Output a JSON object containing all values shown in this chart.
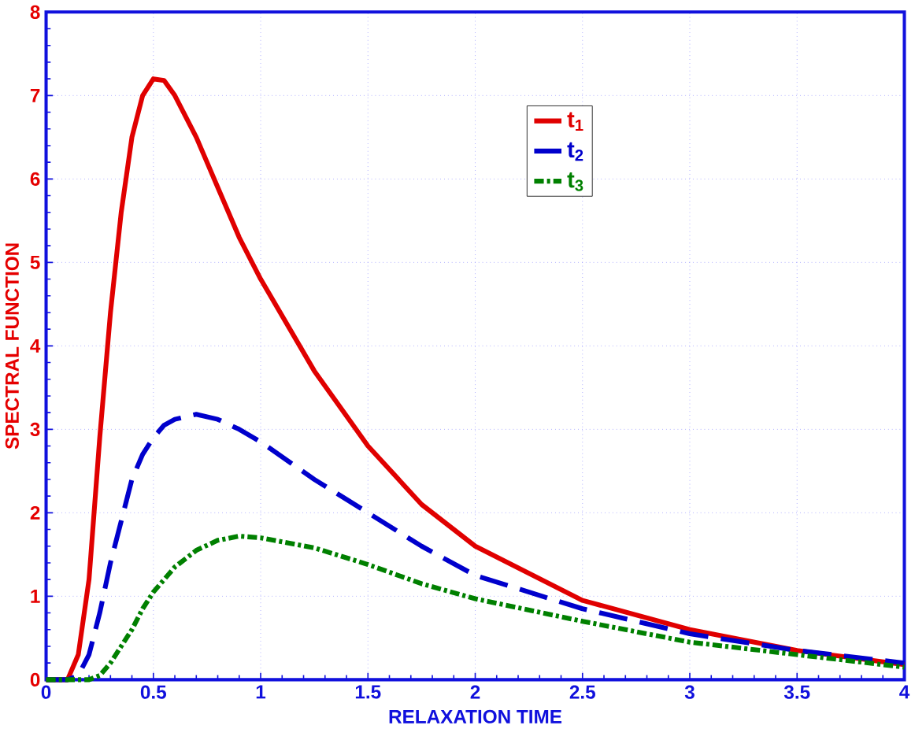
{
  "chart_data": {
    "type": "line",
    "xlabel": "RELAXATION  TIME",
    "ylabel": "SPECTRAL  FUNCTION",
    "xlim": [
      0,
      4
    ],
    "ylim": [
      0,
      8
    ],
    "xticks": [
      0,
      0.5,
      1,
      1.5,
      2,
      2.5,
      3,
      3.5,
      4
    ],
    "yticks": [
      0,
      1,
      2,
      3,
      4,
      5,
      6,
      7,
      8
    ],
    "grid": true,
    "legend": "top right",
    "marker": "none",
    "x": [
      0,
      0.1,
      0.15,
      0.2,
      0.25,
      0.3,
      0.35,
      0.4,
      0.45,
      0.5,
      0.55,
      0.6,
      0.7,
      0.8,
      0.9,
      1.0,
      1.25,
      1.5,
      1.75,
      2.0,
      2.5,
      3.0,
      3.5,
      4.0
    ],
    "series": [
      {
        "name": "t$_{1}$",
        "color": "#e00000",
        "line_style": "solid",
        "values": [
          0,
          0,
          0.3,
          1.2,
          2.9,
          4.4,
          5.6,
          6.5,
          7.0,
          7.2,
          7.18,
          7.0,
          6.5,
          5.9,
          5.3,
          4.8,
          3.7,
          2.8,
          2.1,
          1.6,
          0.95,
          0.6,
          0.35,
          0.18
        ]
      },
      {
        "name": "t$_{2}$",
        "color": "#0000cc",
        "line_style": "dashed",
        "values": [
          0,
          0,
          0.05,
          0.3,
          0.8,
          1.4,
          1.9,
          2.4,
          2.7,
          2.9,
          3.05,
          3.12,
          3.18,
          3.12,
          3.0,
          2.85,
          2.4,
          2.0,
          1.6,
          1.25,
          0.85,
          0.55,
          0.35,
          0.2
        ]
      },
      {
        "name": "t$_{3}$",
        "color": "#008000",
        "line_style": "dotted",
        "values": [
          0,
          0,
          0,
          0,
          0.05,
          0.2,
          0.4,
          0.6,
          0.85,
          1.05,
          1.2,
          1.35,
          1.55,
          1.67,
          1.72,
          1.7,
          1.58,
          1.38,
          1.15,
          0.97,
          0.7,
          0.45,
          0.3,
          0.15
        ]
      }
    ]
  }
}
